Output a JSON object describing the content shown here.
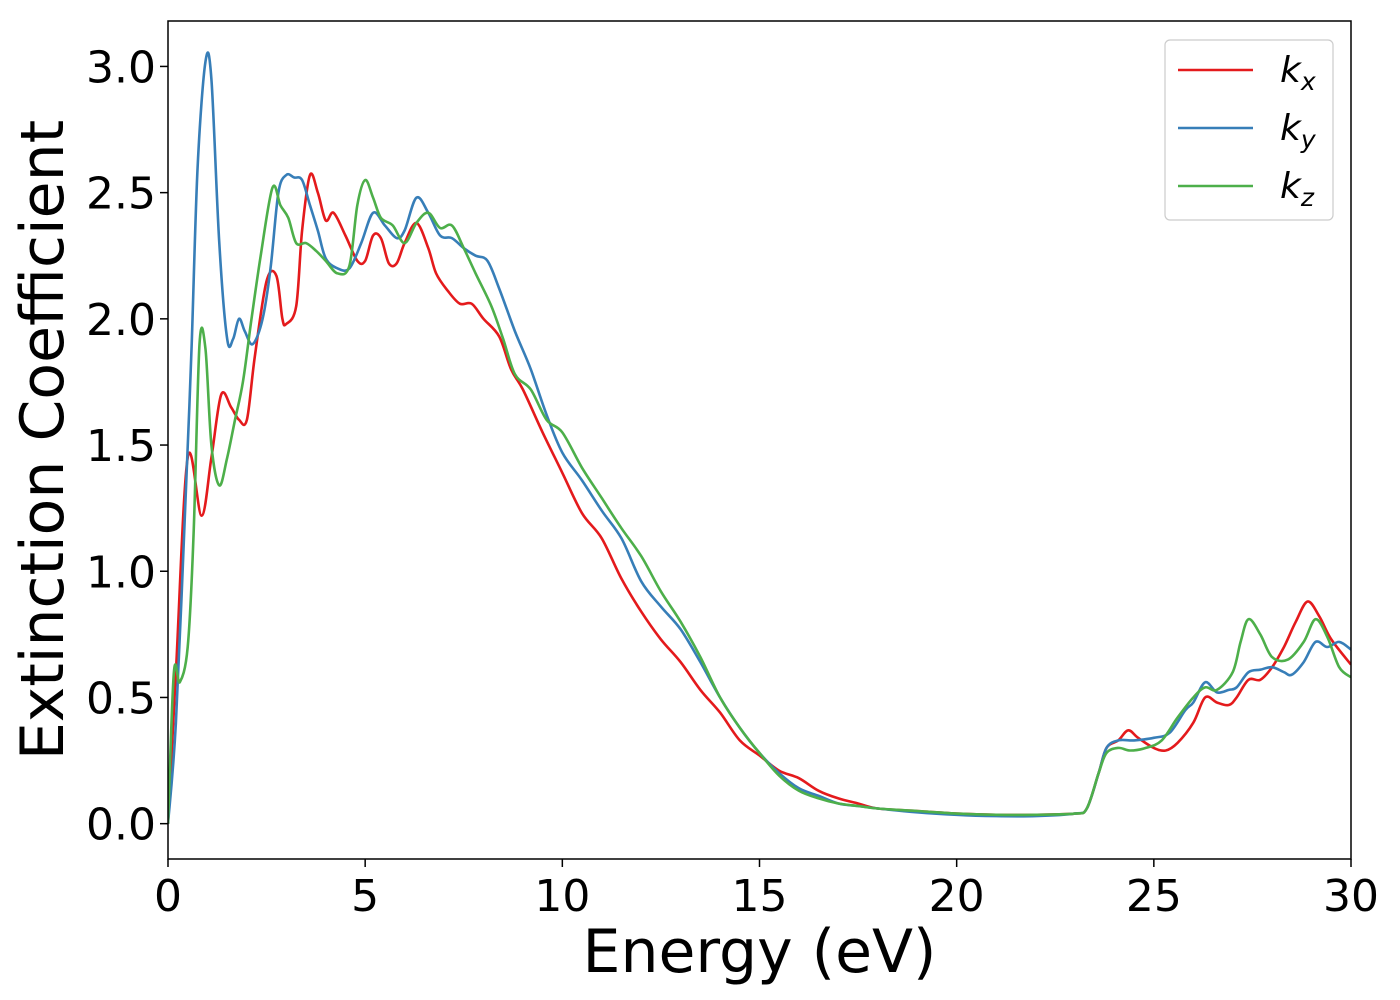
{
  "chart_data": {
    "type": "line",
    "title": "",
    "xlabel": "Energy (eV)",
    "ylabel": "Extinction Coefficient",
    "xlim": [
      0,
      30
    ],
    "ylim": [
      -0.14,
      3.18
    ],
    "x_ticks": [
      "0",
      "5",
      "10",
      "15",
      "20",
      "25",
      "30"
    ],
    "y_ticks": [
      "0.0",
      "0.5",
      "1.0",
      "1.5",
      "2.0",
      "2.5",
      "3.0"
    ],
    "grid": false,
    "legend_position": "top-right",
    "series": [
      {
        "name": "k",
        "subscript": "x",
        "color": "#e41a1c",
        "points": [
          [
            0,
            0.0
          ],
          [
            0.2,
            0.6
          ],
          [
            0.5,
            1.45
          ],
          [
            0.85,
            1.22
          ],
          [
            1.1,
            1.45
          ],
          [
            1.35,
            1.7
          ],
          [
            1.6,
            1.65
          ],
          [
            1.8,
            1.6
          ],
          [
            2.0,
            1.6
          ],
          [
            2.2,
            1.85
          ],
          [
            2.5,
            2.15
          ],
          [
            2.75,
            2.17
          ],
          [
            2.9,
            2.0
          ],
          [
            3.0,
            1.98
          ],
          [
            3.25,
            2.05
          ],
          [
            3.4,
            2.35
          ],
          [
            3.6,
            2.57
          ],
          [
            3.8,
            2.5
          ],
          [
            4.0,
            2.39
          ],
          [
            4.2,
            2.42
          ],
          [
            4.5,
            2.33
          ],
          [
            4.8,
            2.23
          ],
          [
            5.0,
            2.23
          ],
          [
            5.2,
            2.33
          ],
          [
            5.4,
            2.32
          ],
          [
            5.6,
            2.22
          ],
          [
            5.8,
            2.22
          ],
          [
            6.0,
            2.3
          ],
          [
            6.3,
            2.38
          ],
          [
            6.6,
            2.28
          ],
          [
            6.8,
            2.18
          ],
          [
            7.1,
            2.11
          ],
          [
            7.4,
            2.06
          ],
          [
            7.7,
            2.06
          ],
          [
            8.0,
            2.0
          ],
          [
            8.4,
            1.93
          ],
          [
            8.7,
            1.8
          ],
          [
            9.0,
            1.72
          ],
          [
            9.5,
            1.55
          ],
          [
            10.0,
            1.39
          ],
          [
            10.5,
            1.23
          ],
          [
            11.0,
            1.13
          ],
          [
            11.5,
            0.97
          ],
          [
            12.0,
            0.84
          ],
          [
            12.5,
            0.73
          ],
          [
            13.0,
            0.64
          ],
          [
            13.5,
            0.53
          ],
          [
            14.0,
            0.44
          ],
          [
            14.5,
            0.33
          ],
          [
            15.0,
            0.27
          ],
          [
            15.5,
            0.21
          ],
          [
            16.0,
            0.18
          ],
          [
            16.5,
            0.13
          ],
          [
            17.0,
            0.1
          ],
          [
            17.5,
            0.08
          ],
          [
            18.0,
            0.06
          ],
          [
            19.0,
            0.05
          ],
          [
            20.0,
            0.04
          ],
          [
            21.0,
            0.035
          ],
          [
            22.0,
            0.035
          ],
          [
            23.0,
            0.04
          ],
          [
            23.3,
            0.06
          ],
          [
            23.6,
            0.2
          ],
          [
            23.8,
            0.3
          ],
          [
            24.1,
            0.33
          ],
          [
            24.35,
            0.37
          ],
          [
            24.6,
            0.34
          ],
          [
            25.0,
            0.3
          ],
          [
            25.3,
            0.29
          ],
          [
            25.6,
            0.32
          ],
          [
            26.0,
            0.4
          ],
          [
            26.3,
            0.5
          ],
          [
            26.6,
            0.48
          ],
          [
            26.9,
            0.47
          ],
          [
            27.1,
            0.5
          ],
          [
            27.4,
            0.57
          ],
          [
            27.7,
            0.57
          ],
          [
            28.0,
            0.62
          ],
          [
            28.3,
            0.7
          ],
          [
            28.6,
            0.8
          ],
          [
            28.9,
            0.88
          ],
          [
            29.2,
            0.82
          ],
          [
            29.5,
            0.73
          ],
          [
            30.0,
            0.63
          ]
        ]
      },
      {
        "name": "k",
        "subscript": "y",
        "color": "#377eb8",
        "points": [
          [
            0,
            0.0
          ],
          [
            0.2,
            0.4
          ],
          [
            0.45,
            1.3
          ],
          [
            0.6,
            1.9
          ],
          [
            0.75,
            2.6
          ],
          [
            0.95,
            3.02
          ],
          [
            1.1,
            2.95
          ],
          [
            1.3,
            2.3
          ],
          [
            1.5,
            1.92
          ],
          [
            1.65,
            1.92
          ],
          [
            1.8,
            2.0
          ],
          [
            1.95,
            1.95
          ],
          [
            2.15,
            1.9
          ],
          [
            2.4,
            2.0
          ],
          [
            2.6,
            2.2
          ],
          [
            2.8,
            2.5
          ],
          [
            3.0,
            2.57
          ],
          [
            3.2,
            2.56
          ],
          [
            3.4,
            2.55
          ],
          [
            3.6,
            2.45
          ],
          [
            3.8,
            2.35
          ],
          [
            4.0,
            2.24
          ],
          [
            4.3,
            2.2
          ],
          [
            4.6,
            2.2
          ],
          [
            4.9,
            2.3
          ],
          [
            5.2,
            2.42
          ],
          [
            5.5,
            2.37
          ],
          [
            5.8,
            2.32
          ],
          [
            6.0,
            2.35
          ],
          [
            6.3,
            2.48
          ],
          [
            6.6,
            2.42
          ],
          [
            6.9,
            2.33
          ],
          [
            7.2,
            2.32
          ],
          [
            7.5,
            2.28
          ],
          [
            7.8,
            2.25
          ],
          [
            8.1,
            2.23
          ],
          [
            8.4,
            2.12
          ],
          [
            8.8,
            1.95
          ],
          [
            9.2,
            1.8
          ],
          [
            9.6,
            1.62
          ],
          [
            10.0,
            1.47
          ],
          [
            10.5,
            1.36
          ],
          [
            11.0,
            1.24
          ],
          [
            11.5,
            1.13
          ],
          [
            12.0,
            0.96
          ],
          [
            12.5,
            0.86
          ],
          [
            13.0,
            0.77
          ],
          [
            13.5,
            0.64
          ],
          [
            14.0,
            0.5
          ],
          [
            14.5,
            0.38
          ],
          [
            15.0,
            0.28
          ],
          [
            15.5,
            0.2
          ],
          [
            16.0,
            0.14
          ],
          [
            16.5,
            0.11
          ],
          [
            17.0,
            0.08
          ],
          [
            17.5,
            0.07
          ],
          [
            18.0,
            0.06
          ],
          [
            19.0,
            0.045
          ],
          [
            20.0,
            0.035
          ],
          [
            21.0,
            0.03
          ],
          [
            22.0,
            0.03
          ],
          [
            23.0,
            0.04
          ],
          [
            23.3,
            0.06
          ],
          [
            23.6,
            0.2
          ],
          [
            23.8,
            0.3
          ],
          [
            24.1,
            0.33
          ],
          [
            24.5,
            0.33
          ],
          [
            25.0,
            0.34
          ],
          [
            25.4,
            0.36
          ],
          [
            25.8,
            0.45
          ],
          [
            26.0,
            0.48
          ],
          [
            26.3,
            0.56
          ],
          [
            26.6,
            0.52
          ],
          [
            26.9,
            0.53
          ],
          [
            27.1,
            0.54
          ],
          [
            27.4,
            0.6
          ],
          [
            27.7,
            0.61
          ],
          [
            28.0,
            0.62
          ],
          [
            28.3,
            0.6
          ],
          [
            28.5,
            0.59
          ],
          [
            28.8,
            0.64
          ],
          [
            29.1,
            0.72
          ],
          [
            29.4,
            0.7
          ],
          [
            29.7,
            0.72
          ],
          [
            30.0,
            0.69
          ]
        ]
      },
      {
        "name": "k",
        "subscript": "z",
        "color": "#4daf4a",
        "points": [
          [
            0,
            0.0
          ],
          [
            0.15,
            0.6
          ],
          [
            0.3,
            0.56
          ],
          [
            0.5,
            0.7
          ],
          [
            0.65,
            1.15
          ],
          [
            0.8,
            1.9
          ],
          [
            0.95,
            1.88
          ],
          [
            1.1,
            1.5
          ],
          [
            1.3,
            1.34
          ],
          [
            1.5,
            1.45
          ],
          [
            1.7,
            1.6
          ],
          [
            1.9,
            1.75
          ],
          [
            2.1,
            1.98
          ],
          [
            2.35,
            2.25
          ],
          [
            2.65,
            2.52
          ],
          [
            2.85,
            2.45
          ],
          [
            3.05,
            2.4
          ],
          [
            3.25,
            2.3
          ],
          [
            3.5,
            2.3
          ],
          [
            3.75,
            2.27
          ],
          [
            4.0,
            2.23
          ],
          [
            4.3,
            2.18
          ],
          [
            4.6,
            2.21
          ],
          [
            4.8,
            2.45
          ],
          [
            5.0,
            2.55
          ],
          [
            5.2,
            2.48
          ],
          [
            5.4,
            2.4
          ],
          [
            5.7,
            2.37
          ],
          [
            6.0,
            2.3
          ],
          [
            6.3,
            2.38
          ],
          [
            6.6,
            2.42
          ],
          [
            6.9,
            2.36
          ],
          [
            7.2,
            2.37
          ],
          [
            7.5,
            2.28
          ],
          [
            7.8,
            2.18
          ],
          [
            8.2,
            2.05
          ],
          [
            8.5,
            1.92
          ],
          [
            8.8,
            1.78
          ],
          [
            9.2,
            1.72
          ],
          [
            9.6,
            1.6
          ],
          [
            10.0,
            1.55
          ],
          [
            10.5,
            1.41
          ],
          [
            11.0,
            1.29
          ],
          [
            11.5,
            1.17
          ],
          [
            12.0,
            1.06
          ],
          [
            12.5,
            0.92
          ],
          [
            13.0,
            0.8
          ],
          [
            13.5,
            0.66
          ],
          [
            14.0,
            0.5
          ],
          [
            14.5,
            0.38
          ],
          [
            15.0,
            0.28
          ],
          [
            15.5,
            0.19
          ],
          [
            16.0,
            0.13
          ],
          [
            16.5,
            0.1
          ],
          [
            17.0,
            0.08
          ],
          [
            17.5,
            0.07
          ],
          [
            18.0,
            0.06
          ],
          [
            19.0,
            0.05
          ],
          [
            20.0,
            0.04
          ],
          [
            21.0,
            0.035
          ],
          [
            22.0,
            0.035
          ],
          [
            23.0,
            0.04
          ],
          [
            23.3,
            0.06
          ],
          [
            23.6,
            0.2
          ],
          [
            23.8,
            0.28
          ],
          [
            24.1,
            0.3
          ],
          [
            24.4,
            0.29
          ],
          [
            24.8,
            0.3
          ],
          [
            25.2,
            0.33
          ],
          [
            25.6,
            0.42
          ],
          [
            26.0,
            0.5
          ],
          [
            26.3,
            0.54
          ],
          [
            26.6,
            0.53
          ],
          [
            27.0,
            0.6
          ],
          [
            27.2,
            0.72
          ],
          [
            27.4,
            0.81
          ],
          [
            27.7,
            0.75
          ],
          [
            28.0,
            0.66
          ],
          [
            28.4,
            0.65
          ],
          [
            28.8,
            0.72
          ],
          [
            29.1,
            0.81
          ],
          [
            29.4,
            0.74
          ],
          [
            29.7,
            0.62
          ],
          [
            30.0,
            0.58
          ]
        ]
      }
    ]
  }
}
